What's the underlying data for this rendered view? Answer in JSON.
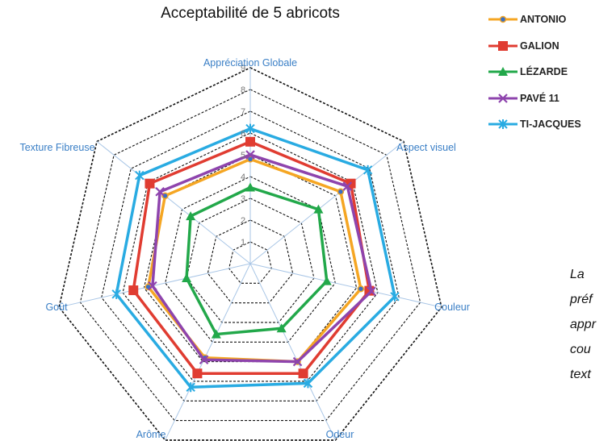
{
  "chart_data": {
    "type": "radar",
    "title": "Acceptabilité de 5 abricots",
    "axes": [
      "Appréciation Globale",
      "Aspect visuel",
      "Couleur",
      "Odeur",
      "Arôme",
      "Goût",
      "Texture Fibreuse"
    ],
    "rlim": [
      0,
      9
    ],
    "ticks": [
      "1",
      "2",
      "3",
      "4",
      "5",
      "6",
      "7",
      "8",
      "9"
    ],
    "grid": true,
    "legend_position": "top-right",
    "series": [
      {
        "name": "ANTONIO",
        "color": "#f5a623",
        "marker": "circle",
        "values": [
          4.8,
          5.3,
          5.2,
          5.0,
          4.8,
          4.8,
          5.0
        ]
      },
      {
        "name": "GALION",
        "color": "#e03c31",
        "marker": "square",
        "values": [
          5.6,
          5.9,
          5.6,
          5.6,
          5.6,
          5.5,
          5.9
        ]
      },
      {
        "name": "LÉZARDE",
        "color": "#22a84a",
        "marker": "triangle",
        "values": [
          3.5,
          4.0,
          3.6,
          3.3,
          3.6,
          3.0,
          3.5
        ]
      },
      {
        "name": "PAVÉ 11",
        "color": "#8e44ad",
        "marker": "x",
        "values": [
          5.0,
          5.7,
          5.7,
          5.0,
          4.9,
          4.6,
          5.3
        ]
      },
      {
        "name": "TI-JACQUES",
        "color": "#29abe2",
        "marker": "star",
        "values": [
          6.2,
          6.9,
          6.8,
          6.1,
          6.3,
          6.3,
          6.5
        ]
      }
    ]
  },
  "side_text": [
    "La",
    "préf",
    "appr",
    "cou",
    "text"
  ]
}
